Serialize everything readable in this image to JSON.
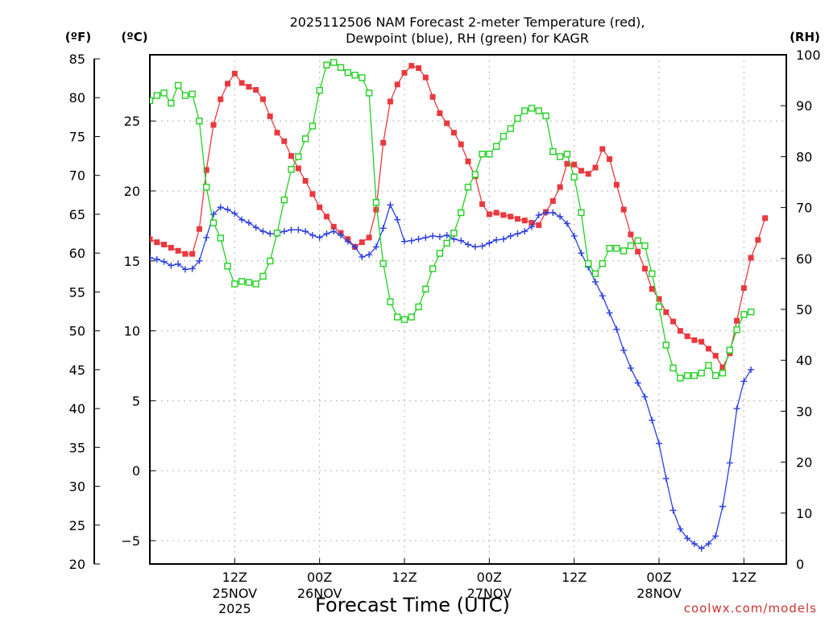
{
  "chart_data": {
    "type": "line",
    "title": "2025112506 NAM Forecast 2-meter Temperature (red),",
    "subtitle": "Dewpoint (blue), RH (green) for KAGR",
    "xlabel": "Forecast Time (UTC)",
    "credit": "coolwx.com/models",
    "units": {
      "f": "(ºF)",
      "c": "(ºC)",
      "rh": "(RH)"
    },
    "x_hours": [
      -6,
      84
    ],
    "axes": {
      "f": {
        "ylim": [
          20,
          85
        ],
        "ticks": [
          "20",
          "25",
          "30",
          "35",
          "40",
          "45",
          "50",
          "55",
          "60",
          "65",
          "70",
          "75",
          "80",
          "85"
        ]
      },
      "c": {
        "ticks": [
          "−5",
          "0",
          "5",
          "10",
          "15",
          "20",
          "25"
        ]
      },
      "rh": {
        "ylim": [
          0,
          100
        ],
        "ticks": [
          "0",
          "10",
          "20",
          "30",
          "40",
          "50",
          "60",
          "70",
          "80",
          "90",
          "100"
        ]
      }
    },
    "x_ticks": [
      {
        "hour": 6,
        "label": "12Z",
        "date": "25NOV",
        "year": "2025"
      },
      {
        "hour": 18,
        "label": "00Z",
        "date": "26NOV",
        "year": ""
      },
      {
        "hour": 30,
        "label": "12Z",
        "date": "",
        "year": ""
      },
      {
        "hour": 42,
        "label": "00Z",
        "date": "27NOV",
        "year": ""
      },
      {
        "hour": 54,
        "label": "12Z",
        "date": "",
        "year": ""
      },
      {
        "hour": 66,
        "label": "00Z",
        "date": "28NOV",
        "year": ""
      },
      {
        "hour": 78,
        "label": "12Z",
        "date": "",
        "year": ""
      }
    ],
    "colors": {
      "temperature": "#e8393f",
      "dewpoint": "#2b3fe0",
      "rh": "#22d022",
      "grid": "#b0b0b0"
    },
    "series": [
      {
        "key": "temperature",
        "axis": "f",
        "marker": "square-filled",
        "values": [
          [
            -6,
            61.8
          ],
          [
            -5,
            61.4
          ],
          [
            -4,
            61.1
          ],
          [
            -3,
            60.7
          ],
          [
            -2,
            60.3
          ],
          [
            -1,
            59.9
          ],
          [
            0,
            59.9
          ],
          [
            1,
            63.1
          ],
          [
            2,
            70.7
          ],
          [
            3,
            76.5
          ],
          [
            4,
            79.8
          ],
          [
            5,
            81.8
          ],
          [
            6,
            83.1
          ],
          [
            7,
            81.9
          ],
          [
            8,
            81.4
          ],
          [
            9,
            81.0
          ],
          [
            10,
            79.8
          ],
          [
            11,
            77.6
          ],
          [
            12,
            75.5
          ],
          [
            13,
            74.4
          ],
          [
            14,
            72.5
          ],
          [
            15,
            70.9
          ],
          [
            16,
            69.3
          ],
          [
            17,
            67.6
          ],
          [
            18,
            65.9
          ],
          [
            19,
            64.7
          ],
          [
            20,
            63.4
          ],
          [
            21,
            62.6
          ],
          [
            22,
            61.8
          ],
          [
            23,
            60.8
          ],
          [
            24,
            61.4
          ],
          [
            25,
            62.0
          ],
          [
            26,
            65.6
          ],
          [
            27,
            74.2
          ],
          [
            28,
            79.5
          ],
          [
            29,
            81.7
          ],
          [
            30,
            83.2
          ],
          [
            31,
            84.1
          ],
          [
            32,
            83.8
          ],
          [
            33,
            82.6
          ],
          [
            34,
            80.1
          ],
          [
            35,
            78.0
          ],
          [
            36,
            76.7
          ],
          [
            37,
            75.5
          ],
          [
            38,
            74.0
          ],
          [
            39,
            71.8
          ],
          [
            40,
            69.9
          ],
          [
            41,
            66.3
          ],
          [
            42,
            65.0
          ],
          [
            43,
            65.2
          ],
          [
            44,
            64.9
          ],
          [
            45,
            64.7
          ],
          [
            46,
            64.4
          ],
          [
            47,
            64.2
          ],
          [
            48,
            63.9
          ],
          [
            49,
            63.6
          ],
          [
            50,
            65.3
          ],
          [
            51,
            66.7
          ],
          [
            52,
            68.5
          ],
          [
            53,
            71.5
          ],
          [
            54,
            71.4
          ],
          [
            55,
            70.6
          ],
          [
            56,
            70.2
          ],
          [
            57,
            71.0
          ],
          [
            58,
            73.4
          ],
          [
            59,
            72.1
          ],
          [
            60,
            68.8
          ],
          [
            61,
            65.6
          ],
          [
            62,
            62.4
          ],
          [
            63,
            60.2
          ],
          [
            64,
            58.0
          ],
          [
            65,
            55.4
          ],
          [
            66,
            54.1
          ],
          [
            67,
            52.4
          ],
          [
            68,
            51.2
          ],
          [
            69,
            50.0
          ],
          [
            70,
            49.3
          ],
          [
            71,
            48.8
          ],
          [
            72,
            48.6
          ],
          [
            73,
            47.7
          ],
          [
            74,
            46.8
          ],
          [
            75,
            45.3
          ],
          [
            76,
            47.1
          ],
          [
            77,
            51.3
          ],
          [
            78,
            55.5
          ],
          [
            79,
            59.4
          ],
          [
            80,
            61.7
          ],
          [
            81,
            64.5
          ]
        ]
      },
      {
        "key": "dewpoint",
        "axis": "f",
        "marker": "plus",
        "values": [
          [
            -6,
            59.4
          ],
          [
            -5,
            59.2
          ],
          [
            -4,
            58.9
          ],
          [
            -3,
            58.4
          ],
          [
            -2,
            58.6
          ],
          [
            -1,
            57.9
          ],
          [
            0,
            58.0
          ],
          [
            1,
            59.0
          ],
          [
            2,
            62.0
          ],
          [
            3,
            65.0
          ],
          [
            4,
            65.9
          ],
          [
            5,
            65.6
          ],
          [
            6,
            65.1
          ],
          [
            7,
            64.3
          ],
          [
            8,
            63.9
          ],
          [
            9,
            63.3
          ],
          [
            10,
            62.8
          ],
          [
            11,
            62.5
          ],
          [
            12,
            62.5
          ],
          [
            13,
            62.8
          ],
          [
            14,
            63.0
          ],
          [
            15,
            63.0
          ],
          [
            16,
            62.8
          ],
          [
            17,
            62.3
          ],
          [
            18,
            62.0
          ],
          [
            19,
            62.5
          ],
          [
            20,
            62.8
          ],
          [
            21,
            62.3
          ],
          [
            22,
            61.5
          ],
          [
            23,
            60.8
          ],
          [
            24,
            59.5
          ],
          [
            25,
            59.8
          ],
          [
            26,
            60.8
          ],
          [
            27,
            63.2
          ],
          [
            28,
            66.2
          ],
          [
            29,
            64.3
          ],
          [
            30,
            61.5
          ],
          [
            31,
            61.6
          ],
          [
            32,
            61.8
          ],
          [
            33,
            62.0
          ],
          [
            34,
            62.2
          ],
          [
            35,
            62.1
          ],
          [
            36,
            62.3
          ],
          [
            37,
            61.8
          ],
          [
            38,
            61.6
          ],
          [
            39,
            61.1
          ],
          [
            40,
            60.8
          ],
          [
            41,
            60.9
          ],
          [
            42,
            61.3
          ],
          [
            43,
            61.7
          ],
          [
            44,
            61.8
          ],
          [
            45,
            62.2
          ],
          [
            46,
            62.5
          ],
          [
            47,
            62.8
          ],
          [
            48,
            63.4
          ],
          [
            49,
            64.9
          ],
          [
            50,
            65.2
          ],
          [
            51,
            65.2
          ],
          [
            52,
            64.7
          ],
          [
            53,
            63.8
          ],
          [
            54,
            62.2
          ],
          [
            55,
            60.0
          ],
          [
            56,
            58.2
          ],
          [
            57,
            56.3
          ],
          [
            58,
            54.5
          ],
          [
            59,
            52.3
          ],
          [
            60,
            50.2
          ],
          [
            61,
            47.5
          ],
          [
            62,
            45.2
          ],
          [
            63,
            43.3
          ],
          [
            64,
            41.5
          ],
          [
            65,
            38.5
          ],
          [
            66,
            35.5
          ],
          [
            67,
            31.0
          ],
          [
            68,
            26.9
          ],
          [
            69,
            24.5
          ],
          [
            70,
            23.3
          ],
          [
            71,
            22.6
          ],
          [
            72,
            22.0
          ],
          [
            73,
            22.6
          ],
          [
            74,
            23.6
          ],
          [
            75,
            27.4
          ],
          [
            76,
            33.0
          ],
          [
            77,
            40.0
          ],
          [
            78,
            43.5
          ],
          [
            79,
            45.0
          ]
        ]
      },
      {
        "key": "rh",
        "axis": "rh",
        "marker": "square-open",
        "values": [
          [
            -6,
            91
          ],
          [
            -5,
            92
          ],
          [
            -4,
            92.5
          ],
          [
            -3,
            90.5
          ],
          [
            -2,
            94
          ],
          [
            -1,
            92
          ],
          [
            0,
            92.3
          ],
          [
            1,
            87
          ],
          [
            2,
            74
          ],
          [
            3,
            67
          ],
          [
            4,
            64
          ],
          [
            5,
            58.5
          ],
          [
            6,
            55
          ],
          [
            7,
            55.5
          ],
          [
            8,
            55.3
          ],
          [
            9,
            55
          ],
          [
            10,
            56.5
          ],
          [
            11,
            59.5
          ],
          [
            12,
            65
          ],
          [
            13,
            71.5
          ],
          [
            14,
            77.5
          ],
          [
            15,
            80
          ],
          [
            16,
            83.5
          ],
          [
            17,
            86
          ],
          [
            18,
            93
          ],
          [
            19,
            98
          ],
          [
            20,
            98.5
          ],
          [
            21,
            97.5
          ],
          [
            22,
            96.5
          ],
          [
            23,
            96
          ],
          [
            24,
            95.5
          ],
          [
            25,
            92.5
          ],
          [
            26,
            71
          ],
          [
            27,
            59
          ],
          [
            28,
            51.5
          ],
          [
            29,
            48.5
          ],
          [
            30,
            48
          ],
          [
            31,
            48.5
          ],
          [
            32,
            50.5
          ],
          [
            33,
            54
          ],
          [
            34,
            58
          ],
          [
            35,
            61
          ],
          [
            36,
            63
          ],
          [
            37,
            65
          ],
          [
            38,
            69
          ],
          [
            39,
            74
          ],
          [
            40,
            76.5
          ],
          [
            41,
            80.5
          ],
          [
            42,
            80.5
          ],
          [
            43,
            82
          ],
          [
            44,
            84
          ],
          [
            45,
            85.5
          ],
          [
            46,
            87.5
          ],
          [
            47,
            89
          ],
          [
            48,
            89.5
          ],
          [
            49,
            89
          ],
          [
            50,
            88
          ],
          [
            51,
            81
          ],
          [
            52,
            80
          ],
          [
            53,
            80.5
          ],
          [
            54,
            76
          ],
          [
            55,
            69
          ],
          [
            56,
            59
          ],
          [
            57,
            57
          ],
          [
            58,
            59
          ],
          [
            59,
            62
          ],
          [
            60,
            62
          ],
          [
            61,
            61.5
          ],
          [
            62,
            62.5
          ],
          [
            63,
            63.5
          ],
          [
            64,
            62.5
          ],
          [
            65,
            57
          ],
          [
            66,
            50.5
          ],
          [
            67,
            43
          ],
          [
            68,
            38.5
          ],
          [
            69,
            36.5
          ],
          [
            70,
            37
          ],
          [
            71,
            37
          ],
          [
            72,
            37.5
          ],
          [
            73,
            39
          ],
          [
            74,
            37
          ],
          [
            75,
            37.5
          ],
          [
            76,
            42
          ],
          [
            77,
            46
          ],
          [
            78,
            49
          ],
          [
            79,
            49.5
          ]
        ]
      }
    ]
  }
}
